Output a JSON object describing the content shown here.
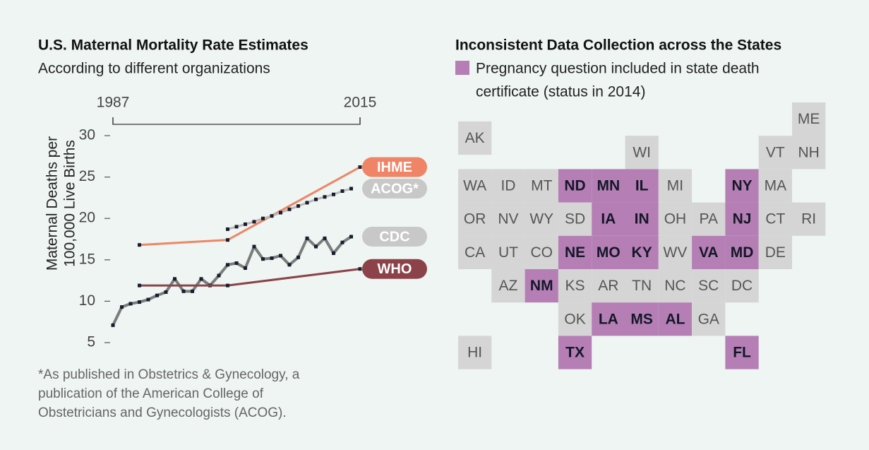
{
  "chart_data": [
    {
      "type": "line",
      "title": "U.S. Maternal Mortality Rate Estimates",
      "subtitle": "According to different organizations",
      "ylabel": [
        "Maternal Deaths per",
        "100,000 Live Births"
      ],
      "xlim": [
        1987,
        2015
      ],
      "xticks": [
        1987,
        2015
      ],
      "ylim": [
        5,
        30
      ],
      "yticks": [
        5,
        10,
        15,
        20,
        25,
        30
      ],
      "series": [
        {
          "name": "IHME",
          "color": "#ef8566",
          "label_color": "#ef8566",
          "x": [
            1990,
            2000,
            2015
          ],
          "values": [
            16.8,
            17.4,
            26.2
          ]
        },
        {
          "name": "ACOG*",
          "color": "#b9b9b9",
          "label_color": "#c8c8c8",
          "x": [
            2000,
            2001,
            2002,
            2003,
            2004,
            2005,
            2006,
            2007,
            2008,
            2009,
            2010,
            2011,
            2012,
            2013,
            2014
          ],
          "values": [
            18.7,
            19.0,
            19.3,
            19.6,
            20.0,
            20.3,
            20.7,
            21.1,
            21.5,
            21.9,
            22.3,
            22.6,
            22.9,
            23.3,
            23.6
          ]
        },
        {
          "name": "CDC",
          "color": "#7a7d7c",
          "label_color": "#c8c8c8",
          "x": [
            1987,
            1988,
            1989,
            1990,
            1991,
            1992,
            1993,
            1994,
            1995,
            1996,
            1997,
            1998,
            1999,
            2000,
            2001,
            2002,
            2003,
            2004,
            2005,
            2006,
            2007,
            2008,
            2009,
            2010,
            2011,
            2012,
            2013,
            2014
          ],
          "values": [
            7.1,
            9.3,
            9.7,
            9.9,
            10.2,
            10.7,
            11.1,
            12.7,
            11.2,
            11.2,
            12.7,
            11.9,
            13.1,
            14.4,
            14.6,
            14.0,
            16.6,
            15.1,
            15.2,
            15.5,
            14.4,
            15.3,
            17.6,
            16.6,
            17.6,
            15.8,
            17.1,
            17.8
          ]
        },
        {
          "name": "WHO",
          "color": "#8b4349",
          "label_color": "#8b4349",
          "x": [
            1990,
            2000,
            2015
          ],
          "values": [
            11.9,
            11.9,
            13.9
          ]
        }
      ],
      "note": [
        "*As published in Obstetrics & Gynecology, a",
        "publication of the American College of",
        "Obstetricians and Gynecologists (ACOG)."
      ]
    },
    {
      "type": "tile-map",
      "title": "Inconsistent Data Collection across the States",
      "legend": [
        "Pregnancy question included in state death",
        "certificate (status in 2014)"
      ],
      "highlight_color": "#b57fb5",
      "other_color": "#d5d5d5",
      "states": [
        {
          "code": "ME",
          "included": false
        },
        {
          "code": "AK",
          "included": false
        },
        {
          "code": "WI",
          "included": false
        },
        {
          "code": "VT",
          "included": false
        },
        {
          "code": "NH",
          "included": false
        },
        {
          "code": "WA",
          "included": false
        },
        {
          "code": "ID",
          "included": false
        },
        {
          "code": "MT",
          "included": false
        },
        {
          "code": "ND",
          "included": true
        },
        {
          "code": "MN",
          "included": true
        },
        {
          "code": "IL",
          "included": true
        },
        {
          "code": "MI",
          "included": false
        },
        {
          "code": "NY",
          "included": true
        },
        {
          "code": "MA",
          "included": false
        },
        {
          "code": "OR",
          "included": false
        },
        {
          "code": "NV",
          "included": false
        },
        {
          "code": "WY",
          "included": false
        },
        {
          "code": "SD",
          "included": false
        },
        {
          "code": "IA",
          "included": true
        },
        {
          "code": "IN",
          "included": true
        },
        {
          "code": "OH",
          "included": false
        },
        {
          "code": "PA",
          "included": false
        },
        {
          "code": "NJ",
          "included": true
        },
        {
          "code": "CT",
          "included": false
        },
        {
          "code": "RI",
          "included": false
        },
        {
          "code": "CA",
          "included": false
        },
        {
          "code": "UT",
          "included": false
        },
        {
          "code": "CO",
          "included": false
        },
        {
          "code": "NE",
          "included": true
        },
        {
          "code": "MO",
          "included": true
        },
        {
          "code": "KY",
          "included": true
        },
        {
          "code": "WV",
          "included": false
        },
        {
          "code": "VA",
          "included": true
        },
        {
          "code": "MD",
          "included": true
        },
        {
          "code": "DE",
          "included": false
        },
        {
          "code": "AZ",
          "included": false
        },
        {
          "code": "NM",
          "included": true
        },
        {
          "code": "KS",
          "included": false
        },
        {
          "code": "AR",
          "included": false
        },
        {
          "code": "TN",
          "included": false
        },
        {
          "code": "NC",
          "included": false
        },
        {
          "code": "SC",
          "included": false
        },
        {
          "code": "DC",
          "included": false
        },
        {
          "code": "OK",
          "included": false
        },
        {
          "code": "LA",
          "included": true
        },
        {
          "code": "MS",
          "included": true
        },
        {
          "code": "AL",
          "included": true
        },
        {
          "code": "GA",
          "included": false
        },
        {
          "code": "HI",
          "included": false
        },
        {
          "code": "TX",
          "included": true
        },
        {
          "code": "FL",
          "included": true
        }
      ]
    }
  ]
}
